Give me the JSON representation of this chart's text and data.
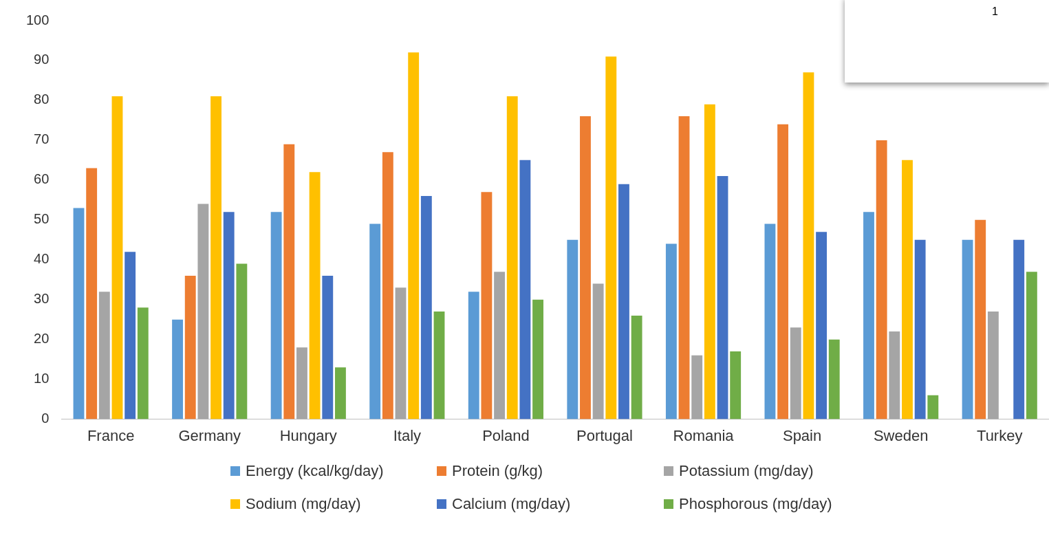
{
  "chart_data": {
    "type": "bar",
    "categories": [
      "France",
      "Germany",
      "Hungary",
      "Italy",
      "Poland",
      "Portugal",
      "Romania",
      "Spain",
      "Sweden",
      "Turkey"
    ],
    "series": [
      {
        "name": "Energy (kcal/kg/day)",
        "color": "#5b9bd5",
        "values": [
          53,
          25,
          52,
          49,
          32,
          45,
          44,
          49,
          52,
          45
        ]
      },
      {
        "name": "Protein (g/kg)",
        "color": "#ed7d31",
        "values": [
          63,
          36,
          69,
          67,
          57,
          76,
          76,
          74,
          70,
          50
        ]
      },
      {
        "name": "Potassium (mg/day)",
        "color": "#a5a5a5",
        "values": [
          32,
          54,
          18,
          33,
          37,
          34,
          16,
          23,
          22,
          27
        ]
      },
      {
        "name": "Sodium (mg/day)",
        "color": "#ffc000",
        "values": [
          81,
          81,
          62,
          92,
          81,
          91,
          79,
          87,
          65,
          null
        ]
      },
      {
        "name": "Calcium (mg/day)",
        "color": "#4472c4",
        "values": [
          42,
          52,
          36,
          56,
          65,
          59,
          61,
          47,
          45,
          45
        ]
      },
      {
        "name": "Phosphorous (mg/day)",
        "color": "#70ad47",
        "values": [
          28,
          39,
          13,
          27,
          30,
          26,
          17,
          20,
          6,
          37
        ]
      }
    ],
    "ylim": [
      0,
      100
    ],
    "yticks": [
      0,
      10,
      20,
      30,
      40,
      50,
      60,
      70,
      80,
      90,
      100
    ],
    "grid": false,
    "legend": "bottom",
    "annotations": [
      "1"
    ]
  }
}
